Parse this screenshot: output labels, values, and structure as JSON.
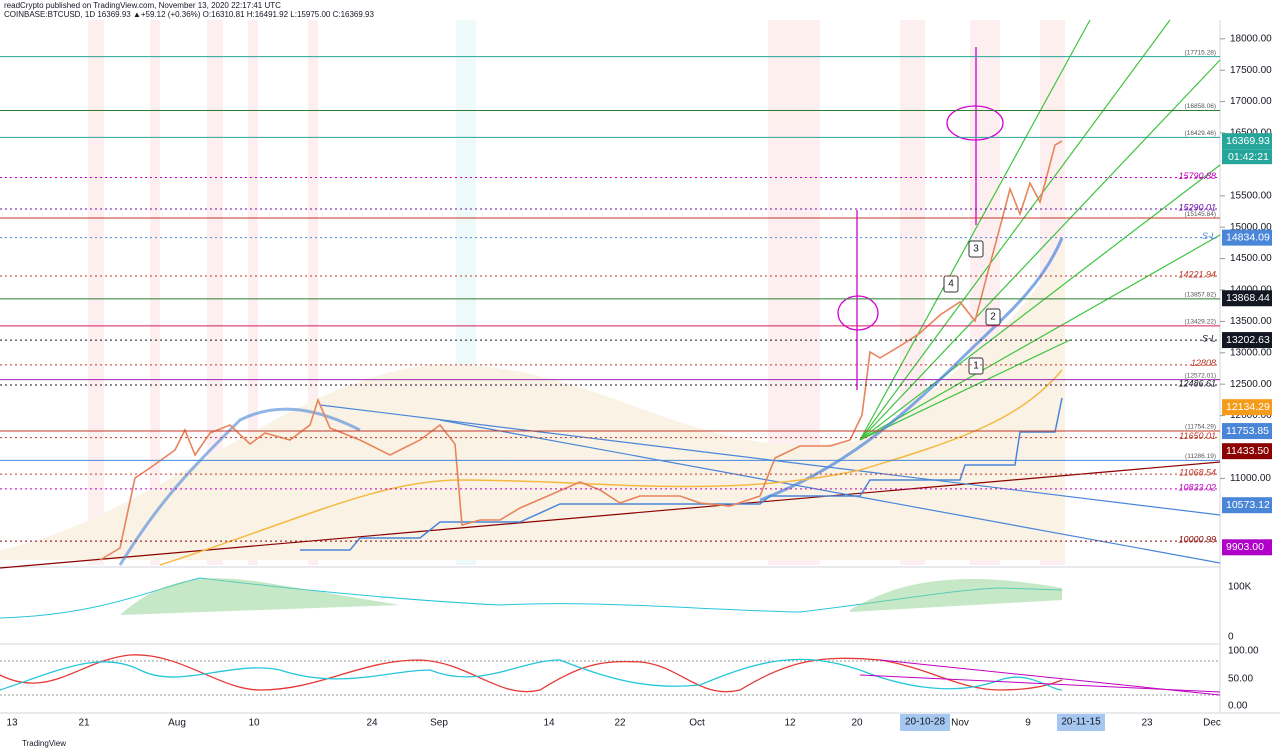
{
  "header": {
    "line1": "readCrypto published on TradingView.com, November 13, 2020 22:17:41 UTC",
    "line2": "COINBASE:BTCUSD, 1D 16369.93 ▲+59.12 (+0.36%) O:16310.81 H:16491.92 L:15975.00 C:16369.93"
  },
  "price_axis": [
    {
      "value": 18000,
      "label": "18000.00"
    },
    {
      "value": 17500,
      "label": "17500.00"
    },
    {
      "value": 17000,
      "label": "17000.00"
    },
    {
      "value": 16500,
      "label": "16500.00"
    },
    {
      "value": 15500,
      "label": "15500.00"
    },
    {
      "value": 15000,
      "label": "15000.00"
    },
    {
      "value": 14500,
      "label": "14500.00"
    },
    {
      "value": 14000,
      "label": "14000.00"
    },
    {
      "value": 13500,
      "label": "13500.00"
    },
    {
      "value": 13000,
      "label": "13000.00"
    },
    {
      "value": 12500,
      "label": "12500.00"
    },
    {
      "value": 12000,
      "label": "12000.00"
    },
    {
      "value": 11000,
      "label": "11000.00"
    }
  ],
  "price_tags": [
    {
      "value": 16369.93,
      "label": "16369.93",
      "color": "#26a69a"
    },
    {
      "value": 14834.09,
      "label": "14834.09",
      "color": "#4a86d8"
    },
    {
      "value": 13868.44,
      "label": "13868.44",
      "color": "#131722"
    },
    {
      "value": 13202.63,
      "label": "13202.63",
      "color": "#131722"
    },
    {
      "value": 12134.29,
      "label": "12134.29",
      "color": "#f59c1a"
    },
    {
      "value": 11753.85,
      "label": "11753.85",
      "color": "#4a86d8"
    },
    {
      "value": 11433.5,
      "label": "11433.50",
      "color": "#8b0000"
    },
    {
      "value": 10573.12,
      "label": "10573.12",
      "color": "#4a86d8"
    },
    {
      "value": 9903,
      "label": "9903.00",
      "color": "#b000c8"
    }
  ],
  "countdown": "01:42:21",
  "levels": [
    {
      "value": 15790.88,
      "label": "15790.88",
      "color": "#c000c0"
    },
    {
      "value": 15290.01,
      "label": "15290.01",
      "color": "#6a0dad"
    },
    {
      "value": 14221.94,
      "label": "14221.94",
      "color": "#c0392b"
    },
    {
      "value": 12808,
      "label": "12808",
      "color": "#c0392b"
    },
    {
      "value": 12486.61,
      "label": "12486.61",
      "color": "#131722"
    },
    {
      "value": 11650.01,
      "label": "11650.01",
      "color": "#c0392b"
    },
    {
      "value": 11068.54,
      "label": "11068.54",
      "color": "#c0392b"
    },
    {
      "value": 10833.02,
      "label": "10833.02",
      "color": "#c000c0"
    },
    {
      "value": 10000.99,
      "label": "10000.99",
      "color": "#8b0000"
    },
    {
      "value": 14834.09,
      "label": "S-L",
      "color": "#4a86d8"
    },
    {
      "value": 13202.63,
      "label": "S-L",
      "color": "#131722"
    }
  ],
  "minor_levels": [
    {
      "value": 17715.28,
      "label": "(17715.28)",
      "color": "#26a69a"
    },
    {
      "value": 16858.06,
      "label": "(16858.06)",
      "color": "#2e7d32"
    },
    {
      "value": 16429.46,
      "label": "(16429.46)",
      "color": "#26a69a"
    },
    {
      "value": 15145.84,
      "label": "(15145.84)",
      "color": "#c0392b"
    },
    {
      "value": 13857.82,
      "label": "(13857.82)",
      "color": "#2e7d32"
    },
    {
      "value": 13429.22,
      "label": "(13429.22)",
      "color": "#d81b60"
    },
    {
      "value": 12572.01,
      "label": "(12572.01)",
      "color": "#9c27b0"
    },
    {
      "value": 11754.29,
      "label": "(11754.29)",
      "color": "#c0392b"
    },
    {
      "value": 11286.19,
      "label": "(11286.19)",
      "color": "#4a86d8"
    }
  ],
  "callouts": [
    "1",
    "2",
    "3",
    "4"
  ],
  "volume_axis": [
    "100K",
    "0"
  ],
  "oscillator_axis": [
    "100.00",
    "50.00",
    "0.00"
  ],
  "time_axis": [
    "13",
    "21",
    "Aug",
    "10",
    "24",
    "Sep",
    "14",
    "22",
    "Oct",
    "12",
    "20",
    "Nov",
    "9",
    "23",
    "Dec"
  ],
  "time_badges": [
    "20-10-28",
    "20-11-15"
  ],
  "footer": "TradingView"
}
